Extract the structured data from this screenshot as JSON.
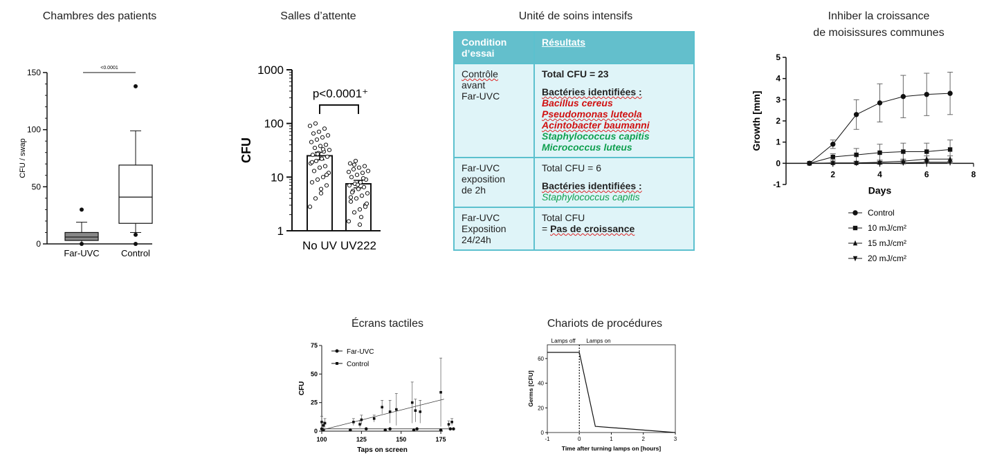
{
  "titles": {
    "patients": "Chambres des patients",
    "waiting": "Salles d’attente",
    "icu": "Unité de soins intensifs",
    "mold1": "Inhiber la croissance",
    "mold2": "de moisissures communes",
    "screens": "Écrans tactiles",
    "carts": "Chariots de procédures"
  },
  "table": {
    "header": {
      "col1a": "Condition",
      "col1b": "d’essai",
      "col2": "Résultats"
    },
    "rows": [
      {
        "c1": [
          "Contrôle",
          "avant",
          "Far-UVC"
        ],
        "total": "Total CFU = 23",
        "ident": "Bactéries identifiées :",
        "red": [
          "Bacillus cereus",
          "Pseudomonas luteola",
          "Acintobacter baumanni"
        ],
        "green": [
          "Staphylococcus capitis",
          "Micrococcus luteus"
        ]
      },
      {
        "c1": [
          "Far-UVC",
          "exposition",
          "de 2h"
        ],
        "total": "Total CFU = 6",
        "ident": "Bactéries identifiées :",
        "green": [
          "Staphylococcus capitis"
        ]
      },
      {
        "c1": [
          "Far-UVC",
          "Exposition",
          "24/24h"
        ],
        "total1": "Total CFU",
        "total2_pre": "= ",
        "total2_bold": "Pas de croissance"
      }
    ]
  },
  "chart_data": [
    {
      "name": "patients",
      "type": "boxplot",
      "title": "Chambres des patients",
      "ylabel": "CFU / swap",
      "ylim": [
        0,
        150
      ],
      "yticks": [
        "0",
        "50",
        "100",
        "150"
      ],
      "categories": [
        "Far-UVC",
        "Control"
      ],
      "annotation": "<0.0001",
      "boxes": [
        {
          "whisker_low": 0,
          "q1": 3,
          "median": 6,
          "q3": 10,
          "whisker_high": 19,
          "outliers": [
            0,
            30
          ]
        },
        {
          "whisker_low": 10,
          "q1": 18,
          "median": 41,
          "q3": 69,
          "whisker_high": 99,
          "outliers": [
            0,
            8,
            138
          ]
        }
      ]
    },
    {
      "name": "waiting",
      "type": "bar",
      "title": "Salles d’attente",
      "ylabel": "CFU",
      "yscale": "log",
      "ylim": [
        1,
        1000
      ],
      "yticks": [
        "1",
        "10",
        "100",
        "1000"
      ],
      "categories": [
        "No UV",
        "UV222"
      ],
      "values": [
        25,
        7.5
      ],
      "errors": [
        4,
        1.2
      ],
      "annotation": "p<0.0001⁺",
      "points": [
        [
          2.8,
          4,
          5,
          7,
          8,
          9,
          10,
          12,
          13,
          15,
          16,
          18,
          20,
          22,
          24,
          26,
          28,
          30,
          32,
          35,
          38,
          40,
          45,
          50,
          55,
          60,
          65,
          70,
          80,
          90,
          100,
          6,
          11,
          19,
          27,
          33
        ],
        [
          1.5,
          2.2,
          2.5,
          3,
          3.5,
          4,
          4.5,
          5,
          5.5,
          6,
          6.5,
          7,
          7.5,
          8,
          9,
          10,
          11,
          12,
          13,
          14,
          15,
          16,
          18,
          20,
          1.8,
          3.2,
          5.2,
          7.2,
          9.5,
          12.5,
          17,
          1.3,
          2.8,
          4.2
        ]
      ]
    },
    {
      "name": "mold",
      "type": "line",
      "title": "Inhiber la croissance de moisissures communes",
      "xlabel": "Days",
      "ylabel": "Growth [mm]",
      "xlim": [
        0,
        8
      ],
      "ylim": [
        -1,
        5
      ],
      "xticks": [
        "2",
        "4",
        "6",
        "8"
      ],
      "yticks": [
        "-1",
        "0",
        "1",
        "2",
        "3",
        "4",
        "5"
      ],
      "x": [
        1,
        2,
        3,
        4,
        5,
        6,
        7
      ],
      "series": [
        {
          "name": "Control",
          "marker": "circle",
          "values": [
            0,
            0.9,
            2.3,
            2.85,
            3.15,
            3.25,
            3.3
          ],
          "errors": [
            0,
            0.2,
            0.7,
            0.9,
            1.0,
            1.0,
            1.0
          ]
        },
        {
          "name": "10 mJ/cm²",
          "marker": "square",
          "values": [
            0,
            0.3,
            0.4,
            0.5,
            0.55,
            0.55,
            0.65
          ],
          "errors": [
            0,
            0.15,
            0.3,
            0.4,
            0.4,
            0.4,
            0.45
          ]
        },
        {
          "name": "15 mJ/cm²",
          "marker": "triangle",
          "values": [
            0,
            0.02,
            0.02,
            0.05,
            0.1,
            0.2,
            0.2
          ],
          "errors": [
            0,
            0.05,
            0.05,
            0.1,
            0.1,
            0.15,
            0.15
          ]
        },
        {
          "name": "20 mJ/cm²",
          "marker": "triangle-down",
          "values": [
            0,
            0,
            0,
            0,
            0.02,
            0.05,
            0.05
          ],
          "errors": [
            0,
            0,
            0,
            0,
            0.05,
            0.05,
            0.05
          ]
        }
      ]
    },
    {
      "name": "screens",
      "type": "scatter",
      "title": "Écrans tactiles",
      "xlabel": "Taps on screen",
      "ylabel": "CFU",
      "xlim": [
        100,
        185
      ],
      "ylim": [
        0,
        75
      ],
      "xticks": [
        "100",
        "125",
        "150",
        "175"
      ],
      "yticks": [
        "0",
        "25",
        "50",
        "75"
      ],
      "series": [
        {
          "name": "Far-UVC",
          "marker": "circle",
          "points": [
            [
              100,
              2
            ],
            [
              101,
              1
            ],
            [
              118,
              1
            ],
            [
              128,
              2
            ],
            [
              140,
              1
            ],
            [
              143,
              2
            ],
            [
              158,
              1
            ],
            [
              160,
              2
            ],
            [
              175,
              1
            ],
            [
              181,
              2
            ],
            [
              183,
              2
            ]
          ],
          "fit": [
            [
              100,
              2
            ],
            [
              183,
              2
            ]
          ]
        },
        {
          "name": "Control",
          "marker": "square",
          "points": [
            [
              100,
              8
            ],
            [
              101,
              5
            ],
            [
              102,
              7
            ],
            [
              120,
              8
            ],
            [
              124,
              6
            ],
            [
              125,
              10
            ],
            [
              133,
              11
            ],
            [
              138,
              21
            ],
            [
              143,
              17
            ],
            [
              147,
              19
            ],
            [
              157,
              25
            ],
            [
              159,
              18
            ],
            [
              162,
              17
            ],
            [
              175,
              34
            ],
            [
              180,
              6
            ],
            [
              182,
              8
            ]
          ],
          "errors": [
            5,
            3,
            4,
            3,
            3,
            4,
            3,
            6,
            10,
            14,
            18,
            10,
            10,
            30,
            3,
            3
          ],
          "fit": [
            [
              100,
              1
            ],
            [
              177,
              28
            ]
          ]
        }
      ]
    },
    {
      "name": "carts",
      "type": "line",
      "title": "Chariots de procédures",
      "xlabel": "Time after turning lamps on [hours]",
      "ylabel": "Germs [CFU]",
      "xlim": [
        -1,
        3
      ],
      "ylim": [
        0,
        65
      ],
      "xticks": [
        "-1",
        "0",
        "1",
        "2",
        "3"
      ],
      "yticks": [
        "0",
        "20",
        "40",
        "60"
      ],
      "annotations": [
        "Lamps off",
        "Lamps on"
      ],
      "x": [
        -1,
        0,
        0.5,
        3
      ],
      "values": [
        65,
        65,
        5,
        0
      ]
    }
  ]
}
